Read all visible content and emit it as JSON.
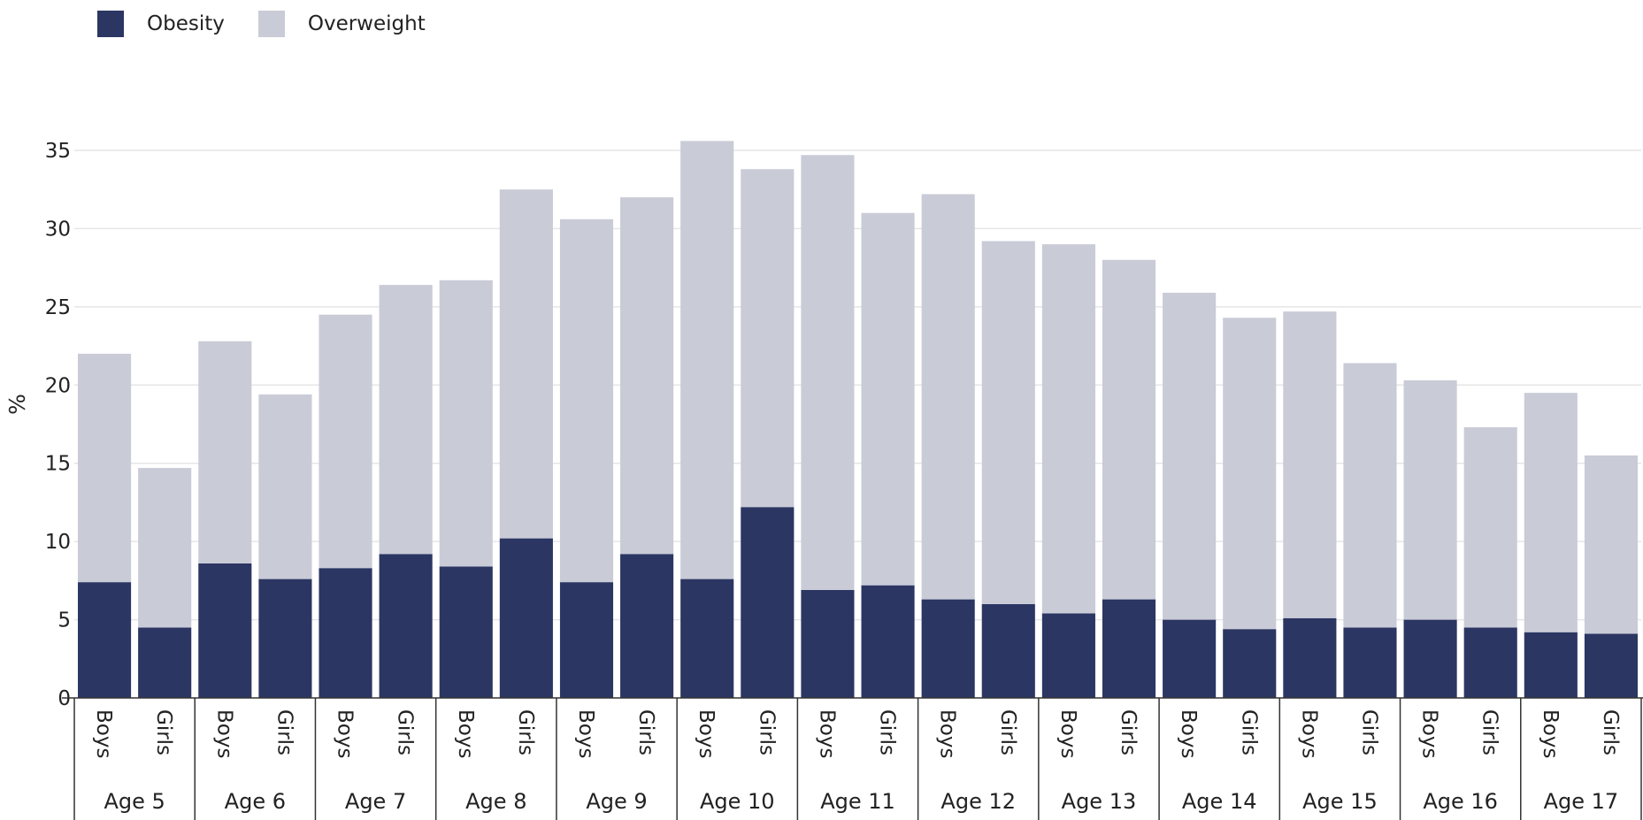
{
  "chart_data": {
    "type": "bar",
    "stacked": true,
    "ylabel": "%",
    "ylim": [
      0,
      35
    ],
    "yticks": [
      0,
      5,
      10,
      15,
      20,
      25,
      30,
      35
    ],
    "grid": true,
    "legend": "top-left",
    "groups": [
      "Age 5",
      "Age 6",
      "Age 7",
      "Age 8",
      "Age 9",
      "Age 10",
      "Age 11",
      "Age 12",
      "Age 13",
      "Age 14",
      "Age 15",
      "Age 16",
      "Age 17"
    ],
    "subcategories": [
      "Boys",
      "Girls"
    ],
    "series": [
      {
        "name": "Obesity",
        "color": "#2b3663",
        "values": [
          7.4,
          4.5,
          8.6,
          7.6,
          8.3,
          9.2,
          8.4,
          10.2,
          7.4,
          9.2,
          7.6,
          12.2,
          6.9,
          7.2,
          6.3,
          6.0,
          5.4,
          6.3,
          5.0,
          4.4,
          5.1,
          4.5,
          5.0,
          4.5,
          4.2,
          4.1
        ]
      },
      {
        "name": "Overweight",
        "color": "#c9cbd7",
        "values": [
          14.6,
          10.2,
          14.2,
          11.8,
          16.2,
          17.2,
          18.3,
          22.3,
          23.2,
          22.8,
          28.0,
          21.6,
          27.8,
          23.8,
          25.9,
          23.2,
          23.6,
          21.7,
          20.9,
          19.9,
          19.6,
          16.9,
          15.3,
          12.8,
          15.3,
          11.4
        ]
      }
    ]
  }
}
